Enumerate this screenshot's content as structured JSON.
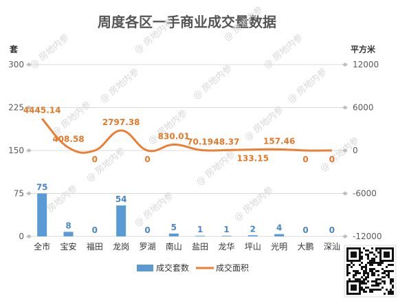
{
  "chart_data": {
    "type": "bar",
    "title": "周度各区一手商业成交量数据",
    "categories": [
      "全市",
      "宝安",
      "福田",
      "龙岗",
      "罗湖",
      "南山",
      "盐田",
      "龙华",
      "坪山",
      "光明",
      "大鹏",
      "深汕"
    ],
    "y_left": {
      "unit": "套",
      "ylim": [
        0,
        300
      ],
      "ticks": [
        0,
        75,
        150,
        225,
        300
      ]
    },
    "y_right": {
      "unit": "平方米",
      "ylim": [
        -12000,
        12000
      ],
      "ticks": [
        -12000,
        -6000,
        0,
        6000,
        12000
      ]
    },
    "series": [
      {
        "name": "成交套数",
        "type": "bar",
        "axis": "left",
        "color": "#5b9bd5",
        "values": [
          75,
          8,
          0,
          54,
          0,
          5,
          1,
          1,
          2,
          4,
          0,
          0
        ]
      },
      {
        "name": "成交面积",
        "type": "line",
        "axis": "right",
        "color": "#ed7d31",
        "values": [
          4445.14,
          408.58,
          0,
          2797.38,
          0,
          830.01,
          70.19,
          48.37,
          133.15,
          157.46,
          0,
          0
        ]
      }
    ],
    "grid": true,
    "legend": "bottom"
  },
  "watermark": "@ 房地内参"
}
